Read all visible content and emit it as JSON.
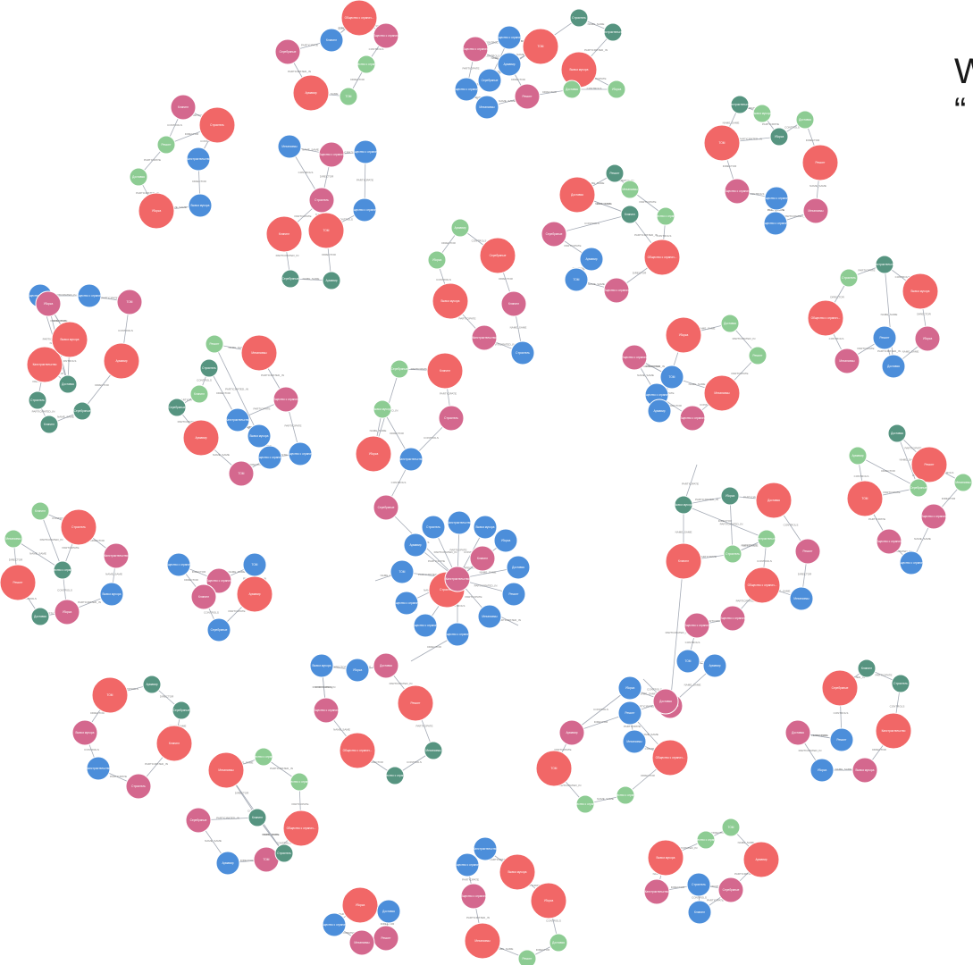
{
  "heading": "W\n“",
  "legend": {
    "company_color": "#f16767",
    "owner_color": "#d4688e",
    "product_color": "#4c8eda",
    "city_color": "#57c7a8",
    "person_color": "#8dcc93",
    "name_color": "#569480",
    "edge_color": "#a5abb6"
  },
  "node_labels": [
    "Общество с огранич...",
    "Общество с огранич...",
    "Общество с огранич...",
    "ТОМ",
    "Армавир",
    "Серебряные",
    "Клининг",
    "Строитель",
    "Капстроительство",
    "Вывоз мусора",
    "Уборка",
    "Доставка",
    "Ремонт",
    "Механизмы"
  ],
  "edge_labels": [
    "PARTICIPATE",
    "CONTROLS",
    "DIRECTOR",
    "NAME_SAME",
    "PARTICIPATED_IN"
  ],
  "clusters": [
    {
      "label": "Общество с ограниченной ответственностью",
      "kind": "company"
    },
    {
      "label": "Общество с ограничен...",
      "kind": "owner"
    }
  ]
}
